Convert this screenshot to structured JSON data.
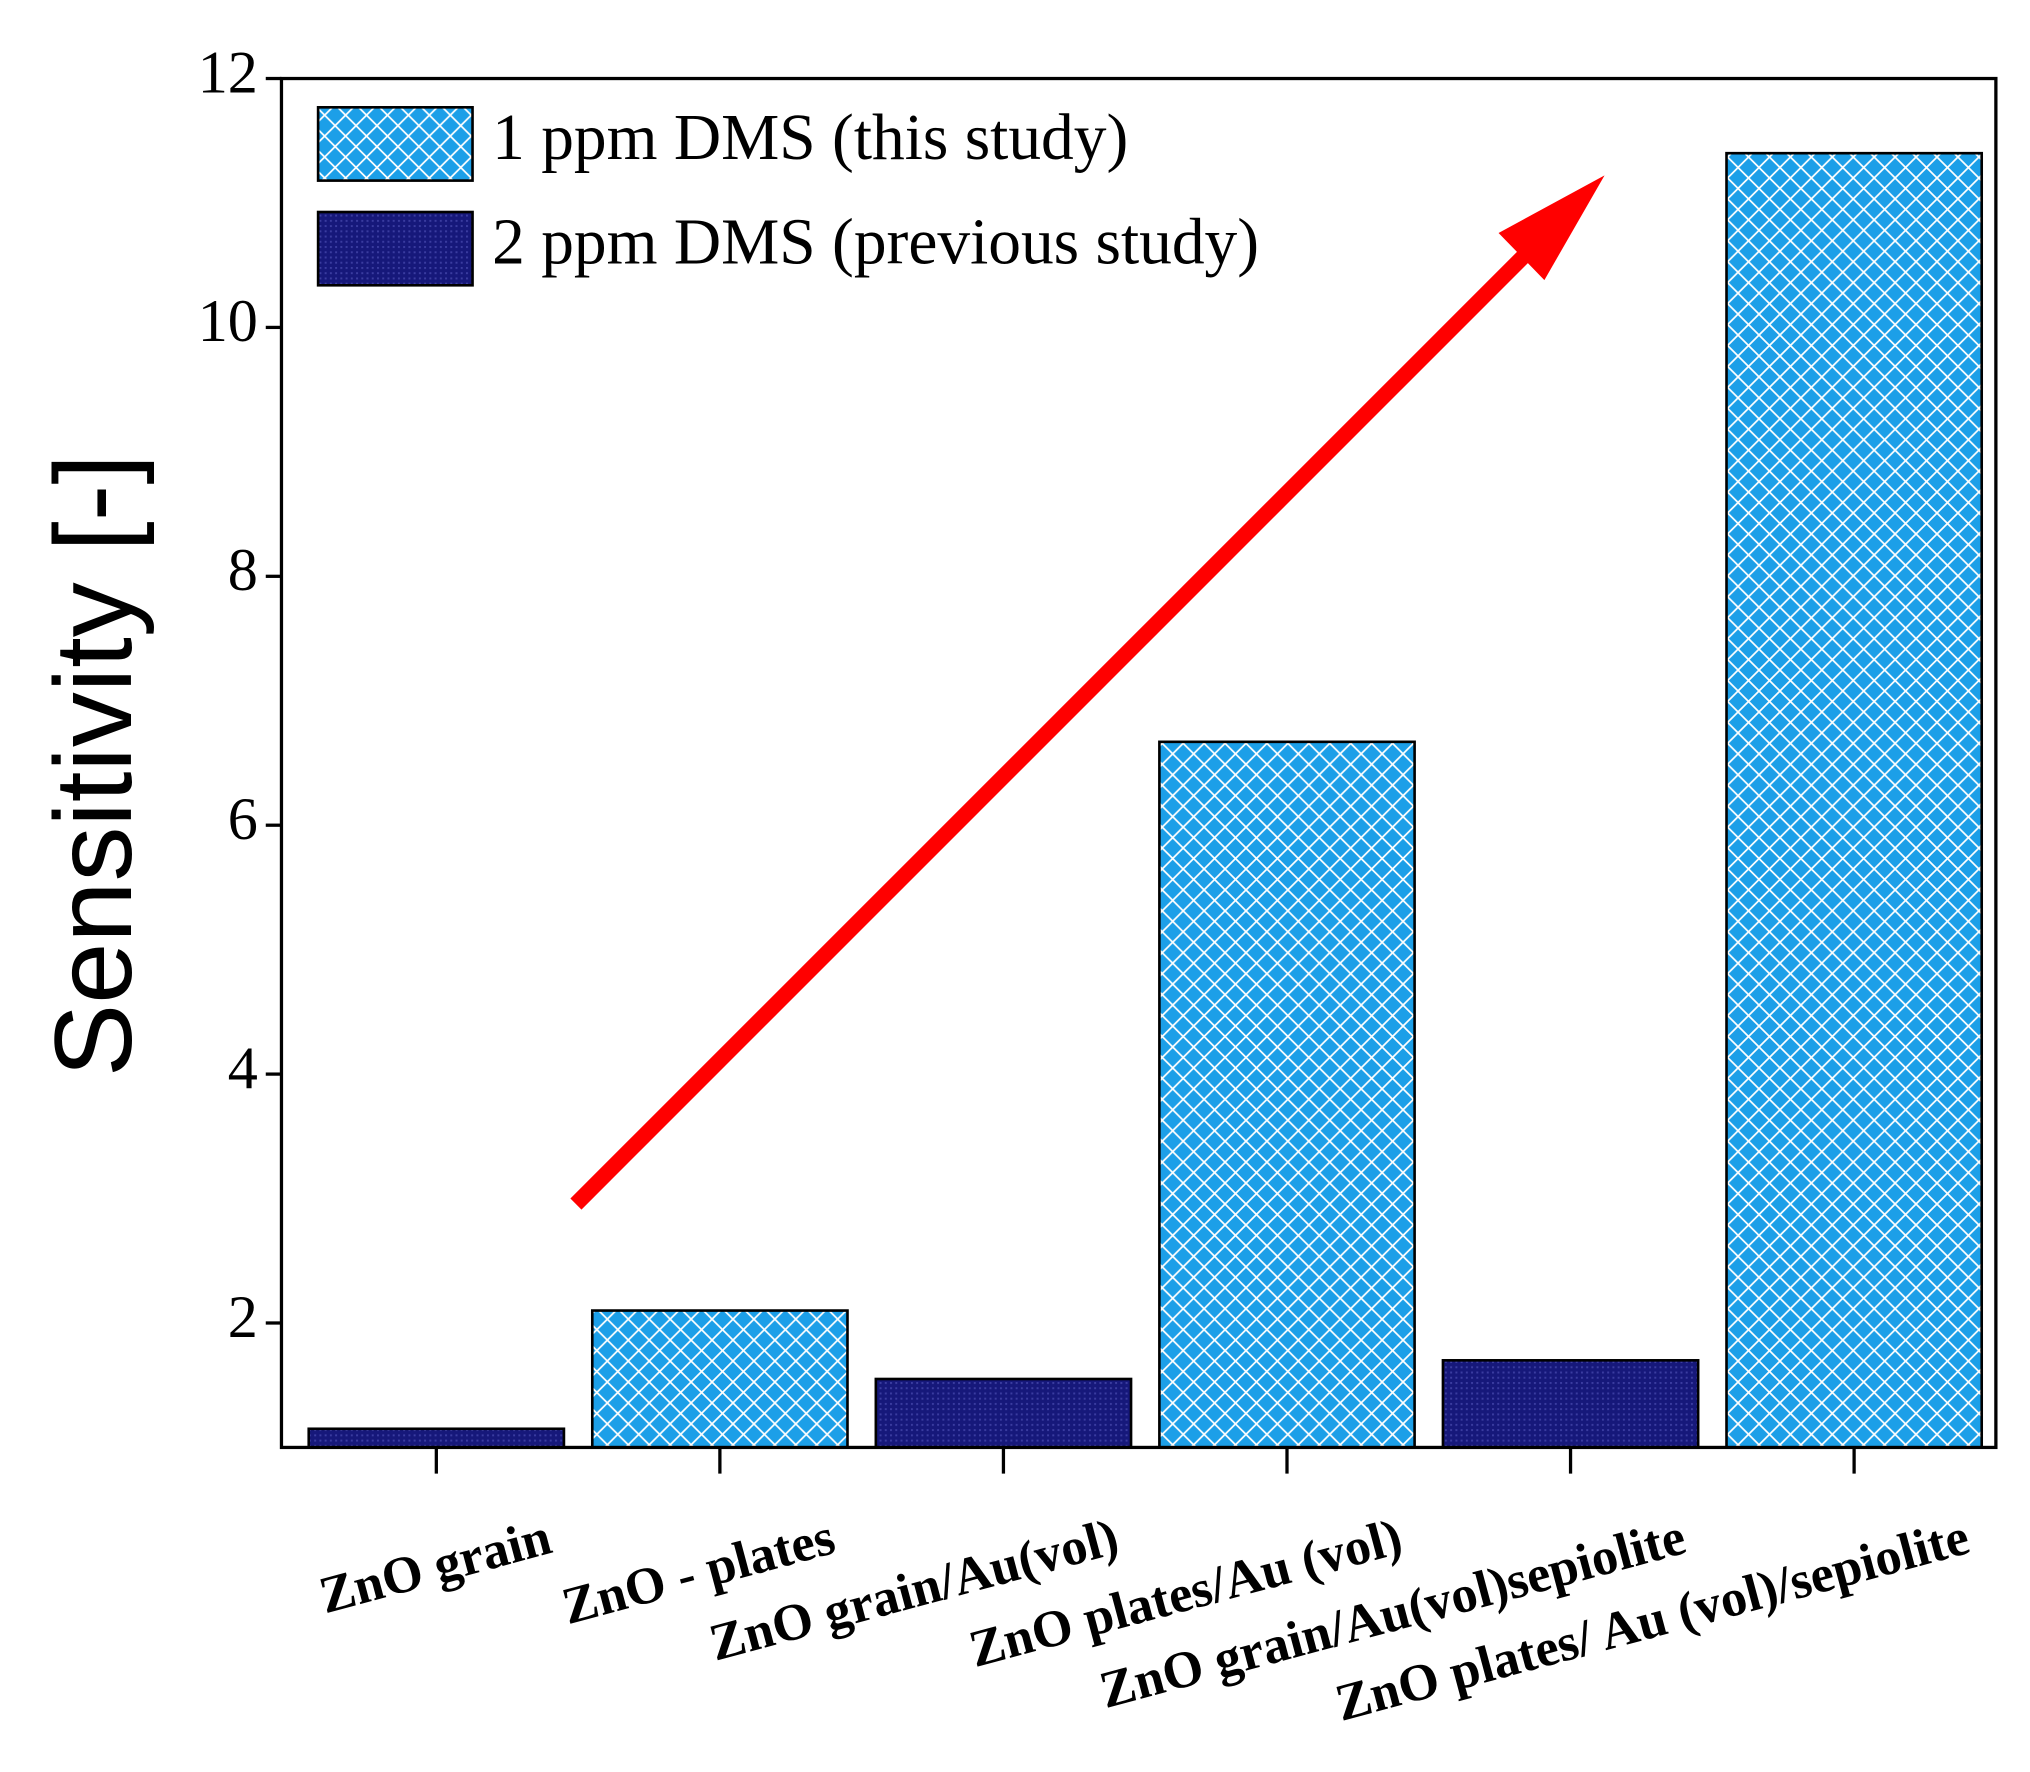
{
  "chart_data": {
    "type": "bar",
    "ylabel": "Sensitivity [-]",
    "categories": [
      "ZnO grain",
      "ZnO - plates",
      "ZnO grain/Au(vol)",
      "ZnO plates/Au (vol)",
      "ZnO grain/Au(vol)sepiolite",
      "ZnO plates/ Au (vol)/sepiolite"
    ],
    "series": [
      {
        "name": "1 ppm DMS (this study)",
        "color": "#1c9fe8",
        "values": [
          null,
          2.1,
          null,
          6.67,
          null,
          11.4
        ]
      },
      {
        "name": "2 ppm DMS (previous study)",
        "color": "#16187a",
        "values": [
          1.15,
          null,
          1.55,
          null,
          1.7,
          null
        ]
      }
    ],
    "ylim": [
      1,
      12
    ],
    "yticks": [
      2,
      4,
      6,
      8,
      10,
      12
    ],
    "legend": "upper left"
  }
}
